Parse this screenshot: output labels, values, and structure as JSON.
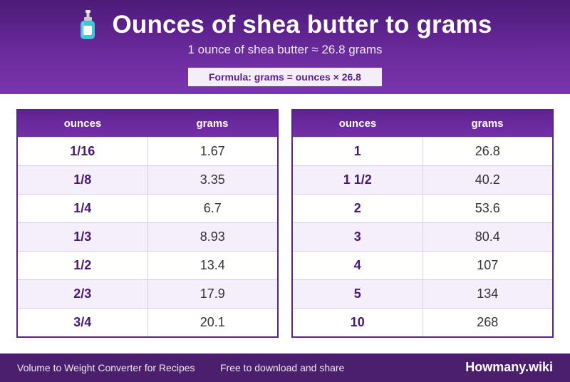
{
  "header": {
    "icon": "lotion-bottle-icon",
    "title": "Ounces of shea butter to grams",
    "subtitle": "1 ounce of shea butter ≈ 26.8 grams",
    "formula": "Formula: grams = ounces × 26.8"
  },
  "tables": [
    {
      "columns": [
        "ounces",
        "grams"
      ],
      "rows": [
        [
          "1/16",
          "1.67"
        ],
        [
          "1/8",
          "3.35"
        ],
        [
          "1/4",
          "6.7"
        ],
        [
          "1/3",
          "8.93"
        ],
        [
          "1/2",
          "13.4"
        ],
        [
          "2/3",
          "17.9"
        ],
        [
          "3/4",
          "20.1"
        ]
      ]
    },
    {
      "columns": [
        "ounces",
        "grams"
      ],
      "rows": [
        [
          "1",
          "26.8"
        ],
        [
          "1 1/2",
          "40.2"
        ],
        [
          "2",
          "53.6"
        ],
        [
          "3",
          "80.4"
        ],
        [
          "4",
          "107"
        ],
        [
          "5",
          "134"
        ],
        [
          "10",
          "268"
        ]
      ]
    }
  ],
  "footer": {
    "left_text": "Volume to Weight Converter for Recipes",
    "middle_text": "Free to download and share",
    "brand": "Howmany.wiki"
  },
  "colors": {
    "primary": "#5a2390",
    "header_dark": "#4c1a78",
    "footer": "#4b1f6e",
    "row_alt": "#f4effa",
    "icon_teal": "#3fc6d6"
  }
}
